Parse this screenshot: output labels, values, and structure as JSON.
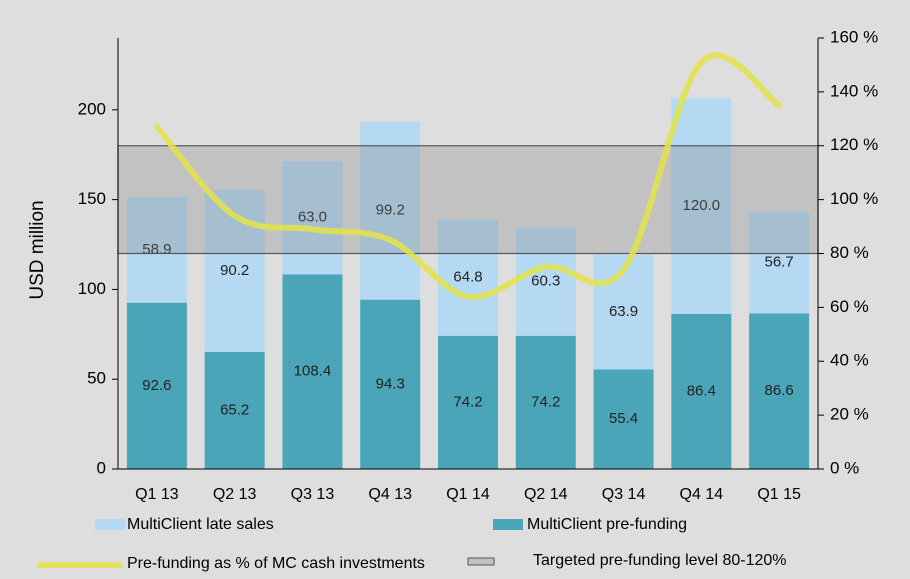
{
  "chart_data": {
    "type": "bar",
    "categories": [
      "Q1 13",
      "Q2 13",
      "Q3 13",
      "Q4 13",
      "Q1 14",
      "Q2 14",
      "Q3 14",
      "Q4 14",
      "Q1 15"
    ],
    "stacked": true,
    "ylabel": "USD million",
    "ylim": [
      0,
      240
    ],
    "yticks": [
      0,
      50,
      100,
      150,
      200
    ],
    "y2lim": [
      0,
      160
    ],
    "y2ticks": [
      {
        "value": 0,
        "label": "0 %"
      },
      {
        "value": 20,
        "label": "20 %"
      },
      {
        "value": 40,
        "label": "40 %"
      },
      {
        "value": 60,
        "label": "60 %"
      },
      {
        "value": 80,
        "label": "80 %"
      },
      {
        "value": 100,
        "label": "100 %"
      },
      {
        "value": 120,
        "label": "120 %"
      },
      {
        "value": 140,
        "label": "140 %"
      },
      {
        "value": 160,
        "label": "160 %"
      }
    ],
    "series": [
      {
        "name": "MultiClient pre-funding",
        "color": "#4ba5b8",
        "values": [
          92.6,
          65.2,
          108.4,
          94.3,
          74.2,
          74.2,
          55.4,
          86.4,
          86.6
        ]
      },
      {
        "name": "MultiClient late sales",
        "color": "#b5d9f3",
        "values": [
          58.9,
          90.2,
          63.0,
          99.2,
          64.8,
          60.3,
          63.9,
          120.0,
          56.7
        ],
        "value_labels": [
          "58.9",
          "90.2",
          "63.0",
          "99.2",
          "64.8",
          "60.3",
          "63.9",
          "120.0",
          "56.7"
        ]
      },
      {
        "name": "Pre-funding as % of MC cash investments",
        "type": "line",
        "axis": "y2",
        "color": "#e3e34a",
        "values": [
          127,
          94,
          89,
          85,
          64,
          75,
          74,
          151,
          135
        ]
      }
    ],
    "band": {
      "name": "Targeted pre-funding level 80-120%",
      "axis": "y2",
      "from": 80,
      "to": 120,
      "color": "#808080"
    }
  }
}
